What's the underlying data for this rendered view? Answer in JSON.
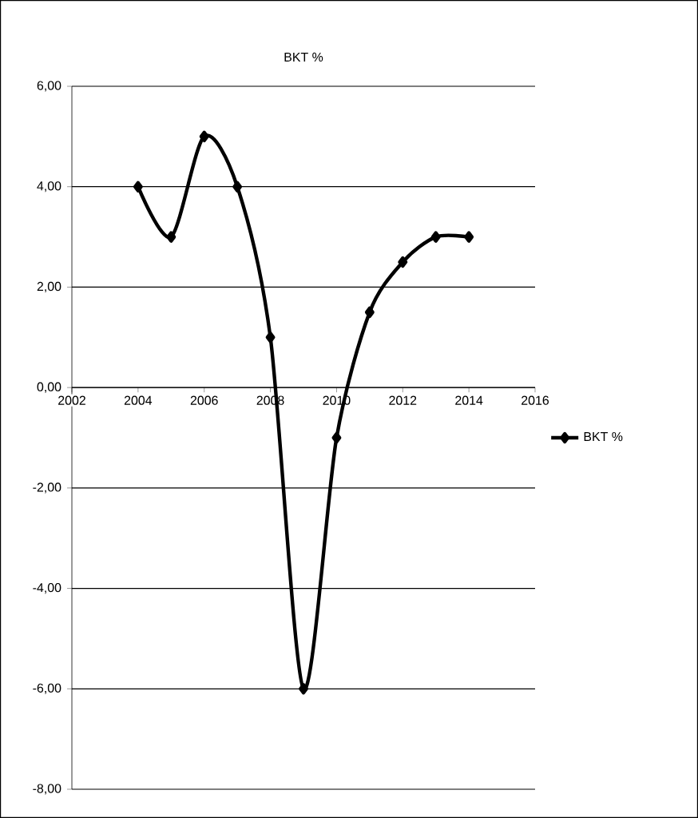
{
  "chart_data": {
    "type": "line",
    "title": "BKT %",
    "x": [
      2004,
      2005,
      2006,
      2007,
      2008,
      2009,
      2010,
      2011,
      2012,
      2013,
      2014
    ],
    "series": [
      {
        "name": "BKT %",
        "color": "#000000",
        "values": [
          4.0,
          3.0,
          5.0,
          4.0,
          1.0,
          -6.0,
          -1.0,
          1.5,
          2.5,
          3.0,
          3.0
        ]
      }
    ],
    "xlim": [
      2002,
      2016
    ],
    "xticks": [
      2002,
      2004,
      2006,
      2008,
      2010,
      2012,
      2014,
      2016
    ],
    "ylim": [
      -8,
      6
    ],
    "yticks": [
      {
        "value": -8,
        "label": "-8,00"
      },
      {
        "value": -6,
        "label": "-6,00"
      },
      {
        "value": -4,
        "label": "-4,00"
      },
      {
        "value": -2,
        "label": "-2,00"
      },
      {
        "value": 0,
        "label": "0,00"
      },
      {
        "value": 2,
        "label": "2,00"
      },
      {
        "value": 4,
        "label": "4,00"
      },
      {
        "value": 6,
        "label": "6,00"
      }
    ],
    "grid": "y",
    "legend": "right",
    "marker": "diamond",
    "line_style": "solid"
  }
}
